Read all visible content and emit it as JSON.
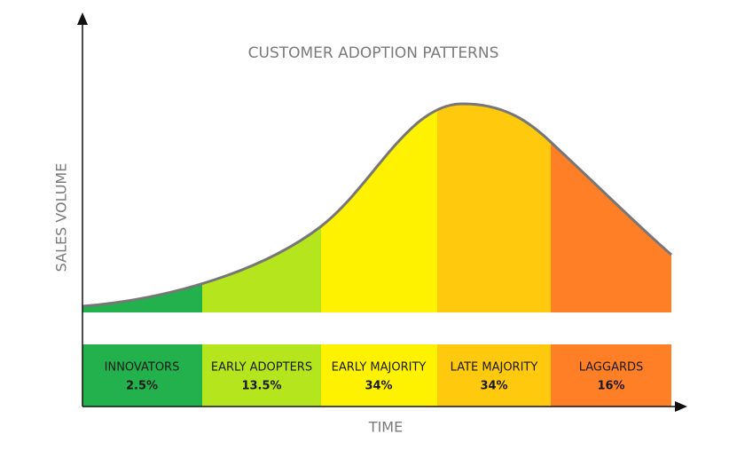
{
  "title": "CUSTOMER ADOPTION PATTERNS",
  "y_axis_label": "SALES VOLUME",
  "x_axis_label": "TIME",
  "segments": [
    {
      "label": "INNOVATORS",
      "share": "2.5%"
    },
    {
      "label": "EARLY ADOPTERS",
      "share": "13.5%"
    },
    {
      "label": "EARLY MAJORITY",
      "share": "34%"
    },
    {
      "label": "LATE MAJORITY",
      "share": "34%"
    },
    {
      "label": "LAGGARDS",
      "share": "16%"
    }
  ]
}
